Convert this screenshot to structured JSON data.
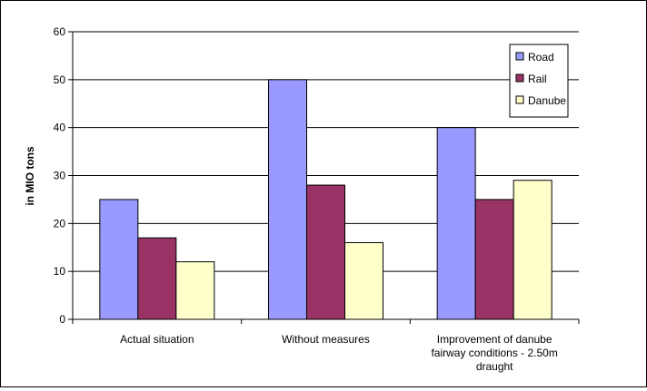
{
  "chart_data": {
    "type": "bar",
    "title": "",
    "xlabel": "",
    "ylabel": "in MIO tons",
    "ylim": [
      0,
      60
    ],
    "yticks": [
      0,
      10,
      20,
      30,
      40,
      50,
      60
    ],
    "grid": true,
    "legend_position": "top-right",
    "categories": [
      [
        "Actual situation"
      ],
      [
        "Without measures"
      ],
      [
        "Improvement of danube",
        "fairway conditions - 2.50m",
        "draught"
      ]
    ],
    "series": [
      {
        "name": "Road",
        "color": "#9999ff",
        "values": [
          25,
          50,
          40
        ]
      },
      {
        "name": "Rail",
        "color": "#993366",
        "values": [
          17,
          28,
          25
        ]
      },
      {
        "name": "Danube",
        "color": "#ffffcc",
        "values": [
          12,
          16,
          29
        ]
      }
    ]
  }
}
